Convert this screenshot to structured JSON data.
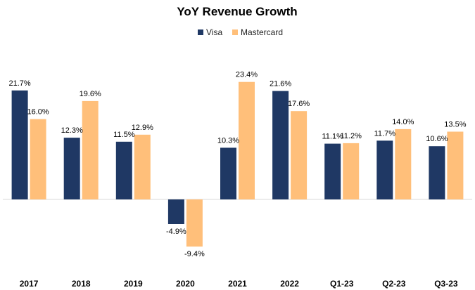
{
  "chart_data": {
    "type": "bar",
    "title": "YoY Revenue Growth",
    "xlabel": "",
    "ylabel": "",
    "ylim": [
      -10,
      25
    ],
    "grid": false,
    "legend_position": "top-center",
    "categories": [
      "2017",
      "2018",
      "2019",
      "2020",
      "2021",
      "2022",
      "Q1-23",
      "Q2-23",
      "Q3-23"
    ],
    "series": [
      {
        "name": "Visa",
        "color": "#1f3864",
        "values": [
          21.7,
          12.3,
          11.5,
          -4.9,
          10.3,
          21.6,
          11.1,
          11.7,
          10.6
        ],
        "labels": [
          "21.7%",
          "12.3%",
          "11.5%",
          "-4.9%",
          "10.3%",
          "21.6%",
          "11.1%",
          "11.7%",
          "10.6%"
        ]
      },
      {
        "name": "Mastercard",
        "color": "#ffbf7a",
        "values": [
          16.0,
          19.6,
          12.9,
          -9.4,
          23.4,
          17.6,
          11.2,
          14.0,
          13.5
        ],
        "labels": [
          "16.0%",
          "19.6%",
          "12.9%",
          "-9.4%",
          "23.4%",
          "17.6%",
          "11.2%",
          "14.0%",
          "13.5%"
        ]
      }
    ]
  }
}
